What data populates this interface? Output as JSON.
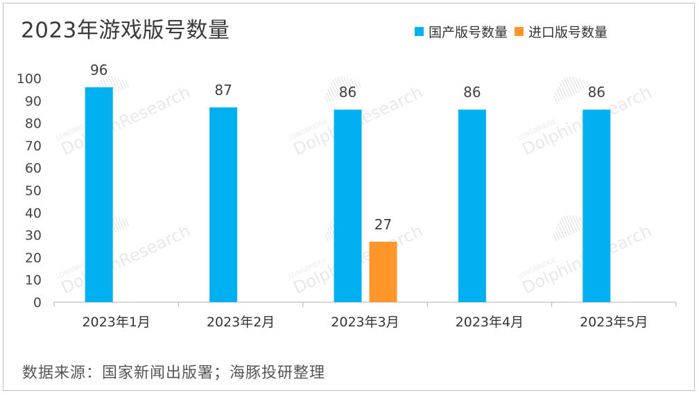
{
  "source_note": "数据来源：国家新闻出版署；海豚投研整理",
  "colors": {
    "domestic": "#00b0f0",
    "imported": "#ff962b"
  },
  "watermark": {
    "brand": "LONGBRIDGE",
    "name": "DolphinResearch"
  },
  "chart_data": {
    "type": "bar",
    "title": "2023年游戏版号数量",
    "categories": [
      "2023年1月",
      "2023年2月",
      "2023年3月",
      "2023年4月",
      "2023年5月"
    ],
    "series": [
      {
        "name": "国产版号数量",
        "values": [
          96,
          87,
          86,
          86,
          86
        ]
      },
      {
        "name": "进口版号数量",
        "values": [
          null,
          null,
          27,
          null,
          null
        ]
      }
    ],
    "ylim": [
      0,
      100
    ],
    "yticks": [
      0,
      10,
      20,
      30,
      40,
      50,
      60,
      70,
      80,
      90,
      100
    ],
    "legend": "top-right",
    "grid": false
  }
}
